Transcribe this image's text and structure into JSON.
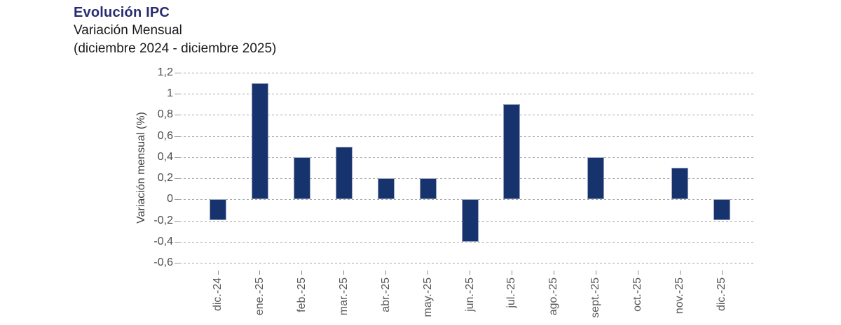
{
  "header": {
    "title": "Evolución IPC",
    "subtitle": "Variación Mensual",
    "period": "(diciembre 2024 - diciembre 2025)"
  },
  "chart_data": {
    "type": "bar",
    "title": "Evolución IPC",
    "subtitle": "Variación Mensual",
    "period_note": "(diciembre 2024 - diciembre 2025)",
    "categories": [
      "dic.-24",
      "ene.-25",
      "feb.-25",
      "mar.-25",
      "abr.-25",
      "may.-25",
      "jun.-25",
      "jul.-25",
      "ago.-25",
      "sept.-25",
      "oct.-25",
      "nov.-25",
      "dic.-25"
    ],
    "values": [
      -0.2,
      1.1,
      0.4,
      0.5,
      0.2,
      0.2,
      -0.4,
      0.9,
      0,
      0.4,
      0,
      0.3,
      -0.2
    ],
    "xlabel": "",
    "ylabel": "Variación mensual (%)",
    "ylim": [
      -0.6,
      1.2
    ],
    "ytick_step": 0.2,
    "ytick_values": [
      1.2,
      1,
      0.8,
      0.6,
      0.4,
      0.2,
      0,
      -0.2,
      -0.4,
      -0.6
    ],
    "ytick_labels": [
      "1,2",
      "1",
      "0,8",
      "0,6",
      "0,4",
      "0,2",
      "0",
      "-0,2",
      "-0,4",
      "-0,6"
    ],
    "decimal_separator": ",",
    "grid": "horizontal-dashed",
    "legend": "none",
    "colors": {
      "bar": "#17336e",
      "title_navy": "#292c70",
      "grid": "#a6a6a6",
      "ytick_text": "#4d4d4d",
      "xtick_text": "#5a5a5a",
      "subtitle_text": "#1a1a1a",
      "background": "#ffffff"
    }
  }
}
